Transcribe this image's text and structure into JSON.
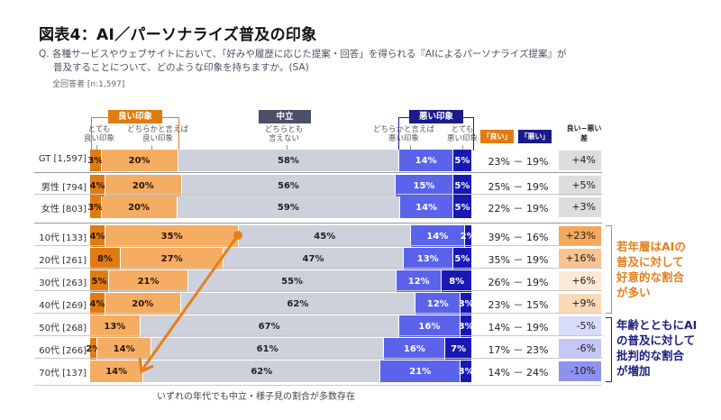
{
  "title": "図表4：AI／パーソナライズ普及の印象",
  "question_line1": "Q. 各種サービスやウェブサイトにおいて、「好みや履歴に応じた提案・回答」を得られる『AIによるパーソナライズ提案』が",
  "question_line2": "普及することについて、どのような印象を持ちますか。(SA)",
  "sample": "全回答者 [n:1,597]",
  "headers": {
    "good": "良い印象",
    "neutral": "中立",
    "bad": "悪い印象",
    "good_sum": "「良い」計",
    "bad_sum": "「悪い」計",
    "diff_line1": "良い−悪い",
    "diff_line2": "差"
  },
  "column_labels": {
    "very_good": [
      "とても",
      "良い印象"
    ],
    "somewhat_good": [
      "どちらかと言えば",
      "良い印象"
    ],
    "neutral": [
      "どちらとも",
      "言えない"
    ],
    "somewhat_bad": [
      "どちらかと言えば",
      "悪い印象"
    ],
    "very_bad": [
      "とても",
      "悪い印象"
    ]
  },
  "colors": {
    "very_good": "#e07b12",
    "somewhat_good": "#f5ad63",
    "neutral": "#cdd1dc",
    "somewhat_bad": "#5b63eb",
    "very_bad": "#1a18b4",
    "good_header": "#e07b12",
    "neutral_header": "#4b5068",
    "bad_header": "#1a1a8c",
    "accent_orange": "#e3801c",
    "accent_navy": "#1d2080"
  },
  "annotations": {
    "young": [
      "若年層はAIの",
      "普及に対して",
      "好意的な割合",
      "が多い"
    ],
    "old": [
      "年齢とともにAI",
      "の普及に対して",
      "批判的な割合",
      "が増加"
    ],
    "footnote": "いずれの年代でも中立・様子見の割合が多数存在"
  },
  "chart_data": {
    "type": "bar",
    "stacked": true,
    "orientation": "horizontal",
    "title": "図表4：AI／パーソナライズ普及の印象",
    "xlim": [
      0,
      100
    ],
    "unit": "%",
    "series_names": [
      "とても良い印象",
      "どちらかと言えば良い印象",
      "どちらとも言えない",
      "どちらかと言えば悪い印象",
      "とても悪い印象"
    ],
    "rows": [
      {
        "label": "GT [1,597]",
        "values": [
          3,
          20,
          58,
          14,
          5
        ],
        "good_sum": "23%",
        "bad_sum": "19%",
        "diff": "+4%",
        "diff_color": "#dcdcdc"
      },
      {
        "label": "男性 [794]",
        "values": [
          4,
          20,
          56,
          15,
          5
        ],
        "good_sum": "25%",
        "bad_sum": "19%",
        "diff": "+5%",
        "diff_color": "#dcdcdc"
      },
      {
        "label": "女性 [803]",
        "values": [
          3,
          20,
          59,
          14,
          5
        ],
        "good_sum": "22%",
        "bad_sum": "19%",
        "diff": "+3%",
        "diff_color": "#dcdcdc"
      },
      {
        "label": "10代 [133]",
        "values": [
          4,
          35,
          45,
          14,
          2
        ],
        "good_sum": "39%",
        "bad_sum": "16%",
        "diff": "+23%",
        "diff_color": "#f3a85c"
      },
      {
        "label": "20代 [261]",
        "values": [
          8,
          27,
          47,
          13,
          5
        ],
        "good_sum": "35%",
        "bad_sum": "19%",
        "diff": "+16%",
        "diff_color": "#f8c491"
      },
      {
        "label": "30代 [263]",
        "values": [
          5,
          21,
          55,
          12,
          8
        ],
        "good_sum": "26%",
        "bad_sum": "19%",
        "diff": "+6%",
        "diff_color": "#fde9d4"
      },
      {
        "label": "40代 [269]",
        "values": [
          4,
          20,
          62,
          12,
          3
        ],
        "good_sum": "23%",
        "bad_sum": "15%",
        "diff": "+9%",
        "diff_color": "#fbd9b6"
      },
      {
        "label": "50代 [268]",
        "values": [
          0,
          13,
          67,
          16,
          3
        ],
        "good_sum": "14%",
        "bad_sum": "19%",
        "diff": "-5%",
        "diff_color": "#d9dbfb"
      },
      {
        "label": "60代 [266]",
        "values": [
          2,
          14,
          61,
          16,
          7
        ],
        "good_sum": "17%",
        "bad_sum": "23%",
        "diff": "-6%",
        "diff_color": "#c3c6f6"
      },
      {
        "label": "70代 [137]",
        "values": [
          0,
          14,
          62,
          21,
          3
        ],
        "good_sum": "14%",
        "bad_sum": "24%",
        "diff": "-10%",
        "diff_color": "#8d92ee"
      }
    ]
  }
}
